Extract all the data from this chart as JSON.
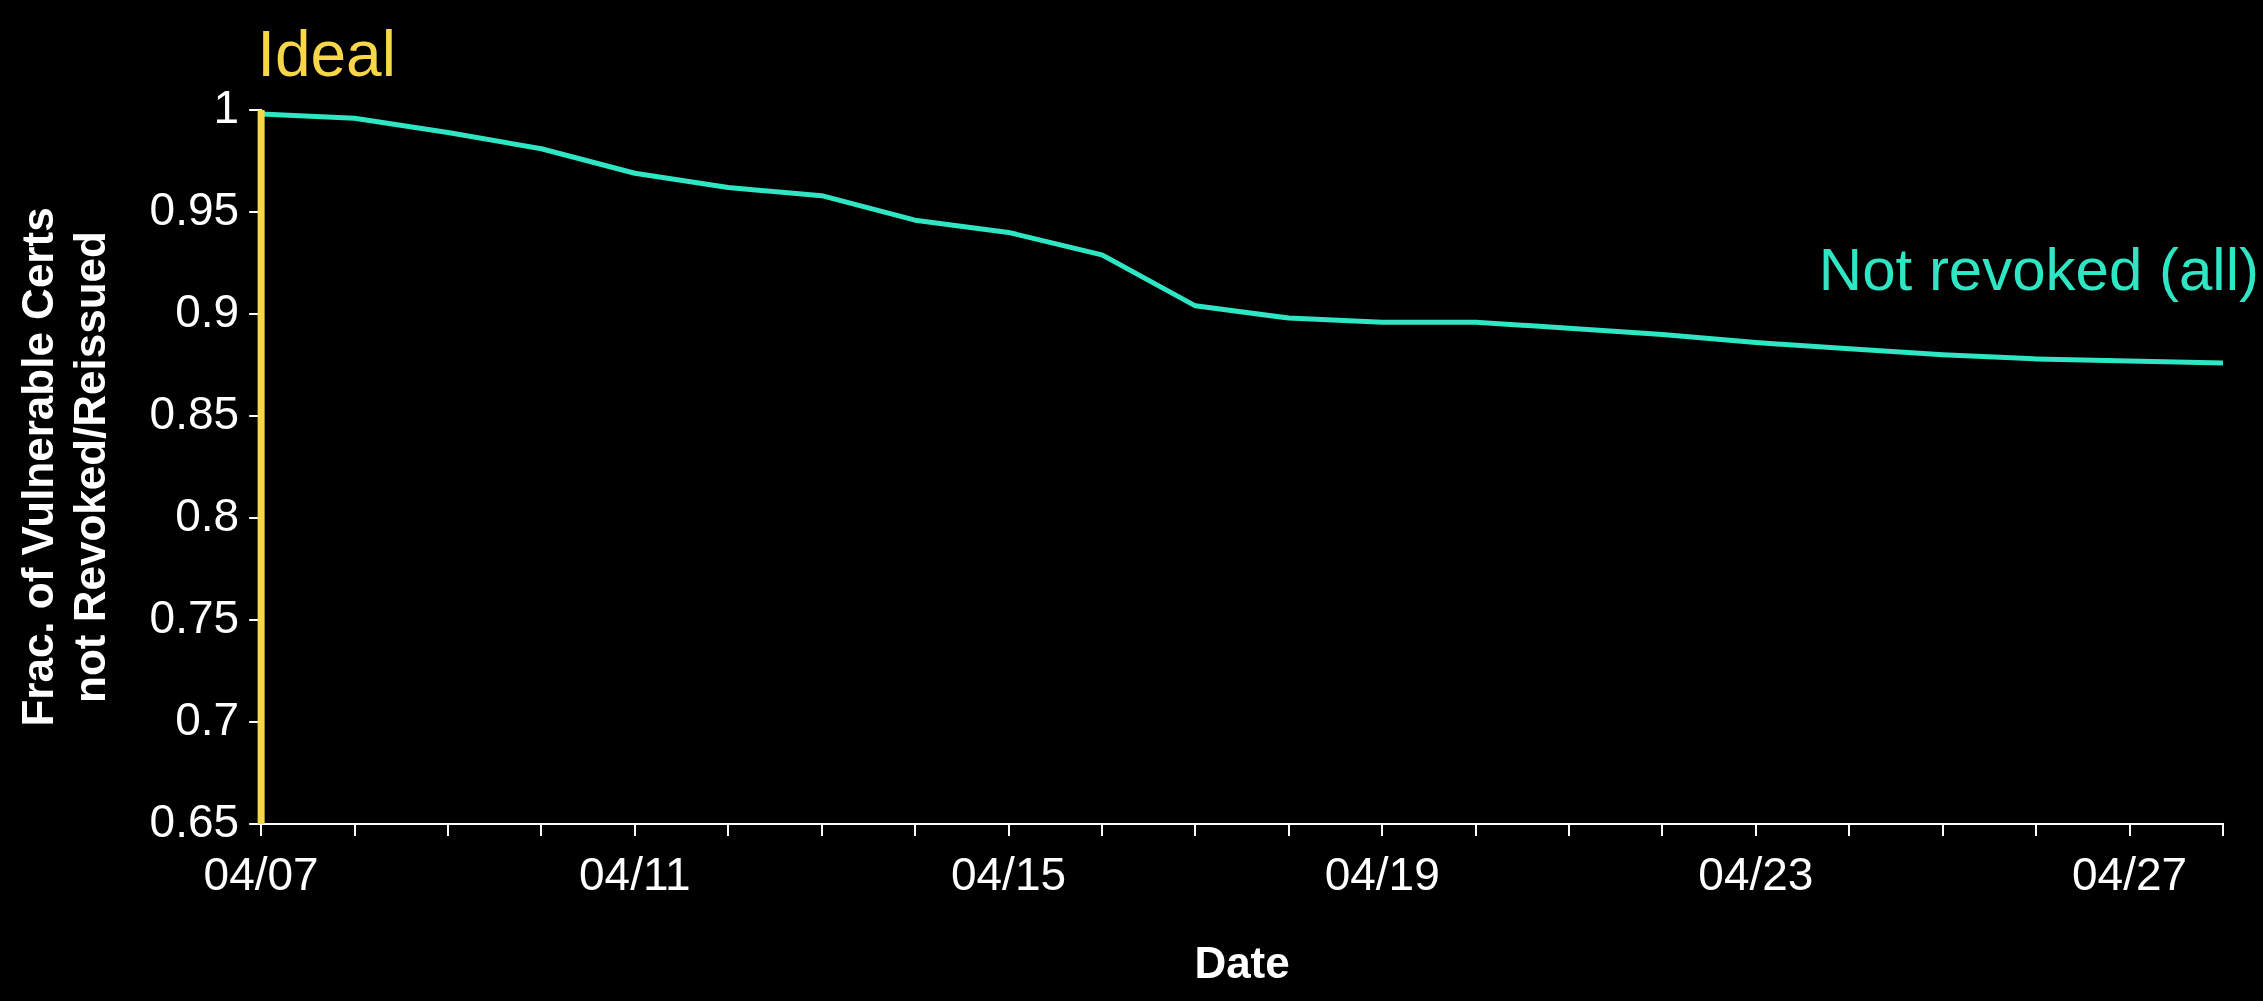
{
  "chart_data": {
    "type": "line",
    "xlabel": "Date",
    "ylabel": "Frac. of Vulnerable Certs\nnot Revoked/Reissued",
    "x": [
      "--04-07",
      "--04-08",
      "--04-09",
      "--04-10",
      "--04-11",
      "--04-12",
      "--04-13",
      "--04-14",
      "--04-15",
      "--04-16",
      "--04-17",
      "--04-18",
      "--04-19",
      "--04-20",
      "--04-21",
      "--04-22",
      "--04-23",
      "--04-24",
      "--04-25",
      "--04-26",
      "--04-27",
      "--04-28"
    ],
    "series": [
      {
        "name": "Not revoked (all)",
        "color": "#2ee6c4",
        "values": [
          0.998,
          0.996,
          0.989,
          0.981,
          0.969,
          0.962,
          0.958,
          0.946,
          0.94,
          0.929,
          0.904,
          0.898,
          0.896,
          0.896,
          0.893,
          0.89,
          0.886,
          0.883,
          0.88,
          0.878,
          0.877,
          0.876
        ]
      }
    ],
    "xlim": [
      "--04-07",
      "--04-28"
    ],
    "xticks": [
      {
        "value": "--04-07",
        "label": "04/07"
      },
      {
        "value": "--04-08",
        "label": null
      },
      {
        "value": "--04-09",
        "label": null
      },
      {
        "value": "--04-10",
        "label": null
      },
      {
        "value": "--04-11",
        "label": "04/11"
      },
      {
        "value": "--04-12",
        "label": null
      },
      {
        "value": "--04-13",
        "label": null
      },
      {
        "value": "--04-14",
        "label": null
      },
      {
        "value": "--04-15",
        "label": "04/15"
      },
      {
        "value": "--04-16",
        "label": null
      },
      {
        "value": "--04-17",
        "label": null
      },
      {
        "value": "--04-18",
        "label": null
      },
      {
        "value": "--04-19",
        "label": "04/19"
      },
      {
        "value": "--04-20",
        "label": null
      },
      {
        "value": "--04-21",
        "label": null
      },
      {
        "value": "--04-22",
        "label": null
      },
      {
        "value": "--04-23",
        "label": "04/23"
      },
      {
        "value": "--04-24",
        "label": null
      },
      {
        "value": "--04-25",
        "label": null
      },
      {
        "value": "--04-26",
        "label": null
      },
      {
        "value": "--04-27",
        "label": "04/27"
      },
      {
        "value": "--04-28",
        "label": null
      }
    ],
    "ylim": [
      0.65,
      1
    ],
    "yticks": [
      0.65,
      0.7,
      0.75,
      0.8,
      0.85,
      0.9,
      0.95,
      1
    ],
    "ref_lines": [
      {
        "axis": "x",
        "value": "--04-07",
        "label": "Ideal",
        "color": "#f7d64a"
      }
    ],
    "grid": false,
    "legend": false
  }
}
